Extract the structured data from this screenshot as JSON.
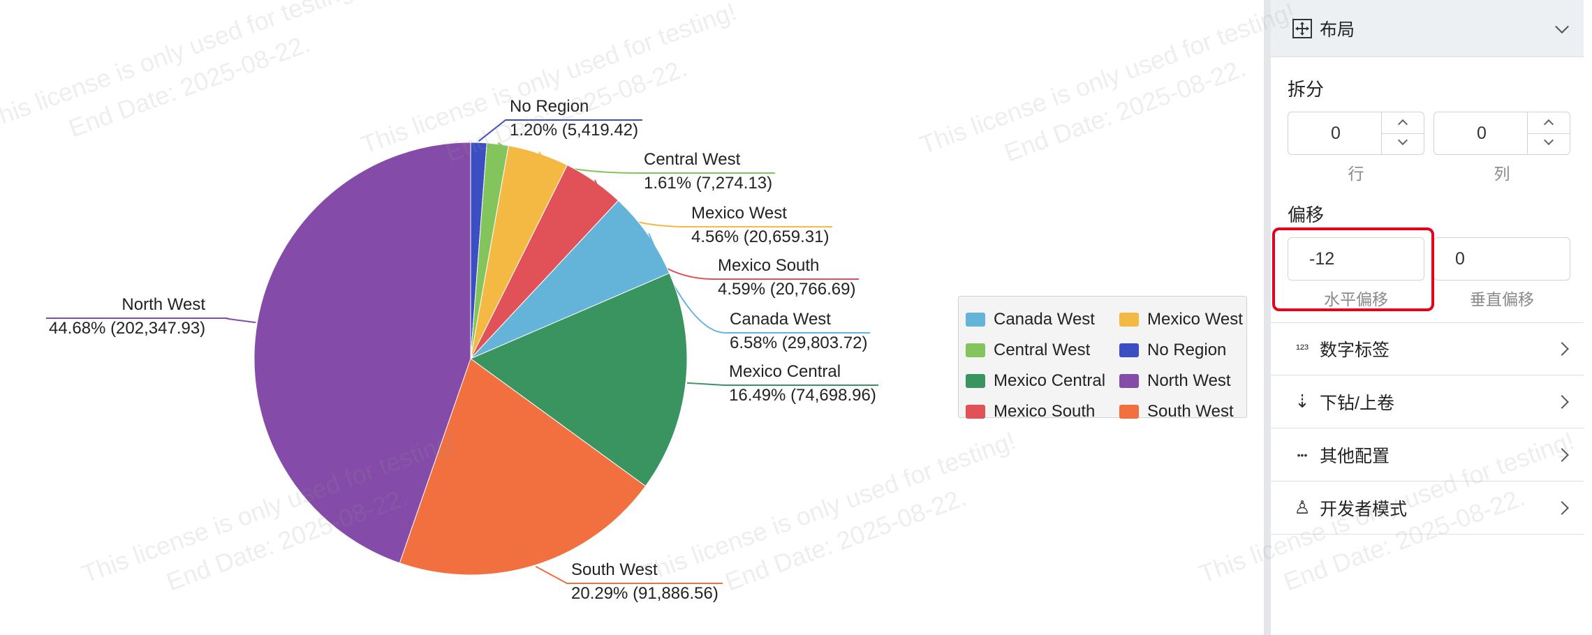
{
  "chart_data": {
    "type": "pie",
    "total_label": "",
    "slices": [
      {
        "name": "No Region",
        "value": 5419.42,
        "percent": "1.20%",
        "value_label": "5,419.42",
        "color": "#3c4fc2"
      },
      {
        "name": "Central West",
        "value": 7274.13,
        "percent": "1.61%",
        "value_label": "7,274.13",
        "color": "#83c45c"
      },
      {
        "name": "Mexico West",
        "value": 20659.31,
        "percent": "4.56%",
        "value_label": "20,659.31",
        "color": "#f4b942"
      },
      {
        "name": "Mexico South",
        "value": 20766.69,
        "percent": "4.59%",
        "value_label": "20,766.69",
        "color": "#e05258"
      },
      {
        "name": "Canada West",
        "value": 29803.72,
        "percent": "6.58%",
        "value_label": "29,803.72",
        "color": "#64b4da"
      },
      {
        "name": "Mexico Central",
        "value": 74698.96,
        "percent": "16.49%",
        "value_label": "74,698.96",
        "color": "#3a9460"
      },
      {
        "name": "South West",
        "value": 91886.56,
        "percent": "20.29%",
        "value_label": "91,886.56",
        "color": "#f26f40"
      },
      {
        "name": "North West",
        "value": 202347.93,
        "percent": "44.68%",
        "value_label": "202,347.93",
        "color": "#844ca8"
      }
    ],
    "legend": {
      "placement": "right",
      "items": [
        "Canada West",
        "Mexico West",
        "Central West",
        "No Region",
        "Mexico Central",
        "North West",
        "Mexico South",
        "South West"
      ]
    }
  },
  "watermark": {
    "line1": "This license is only used for testing!",
    "line2": "End Date: 2025-08-22."
  },
  "panel": {
    "layout_section": {
      "title": "布局",
      "icon": "layout-icon"
    },
    "split": {
      "label": "拆分",
      "rows_value": "0",
      "rows_caption": "行",
      "cols_value": "0",
      "cols_caption": "列"
    },
    "offset": {
      "label": "偏移",
      "horizontal_value": "-12",
      "horizontal_caption": "水平偏移",
      "vertical_value": "0",
      "vertical_caption": "垂直偏移"
    },
    "sections": [
      {
        "title": "数字标签",
        "icon": "number-label-icon",
        "glyph": "¹²³"
      },
      {
        "title": "下钻/上卷",
        "icon": "drill-icon",
        "glyph": "⇣"
      },
      {
        "title": "其他配置",
        "icon": "more-icon",
        "glyph": "•••"
      },
      {
        "title": "开发者模式",
        "icon": "developer-icon",
        "glyph": "♙"
      }
    ]
  }
}
